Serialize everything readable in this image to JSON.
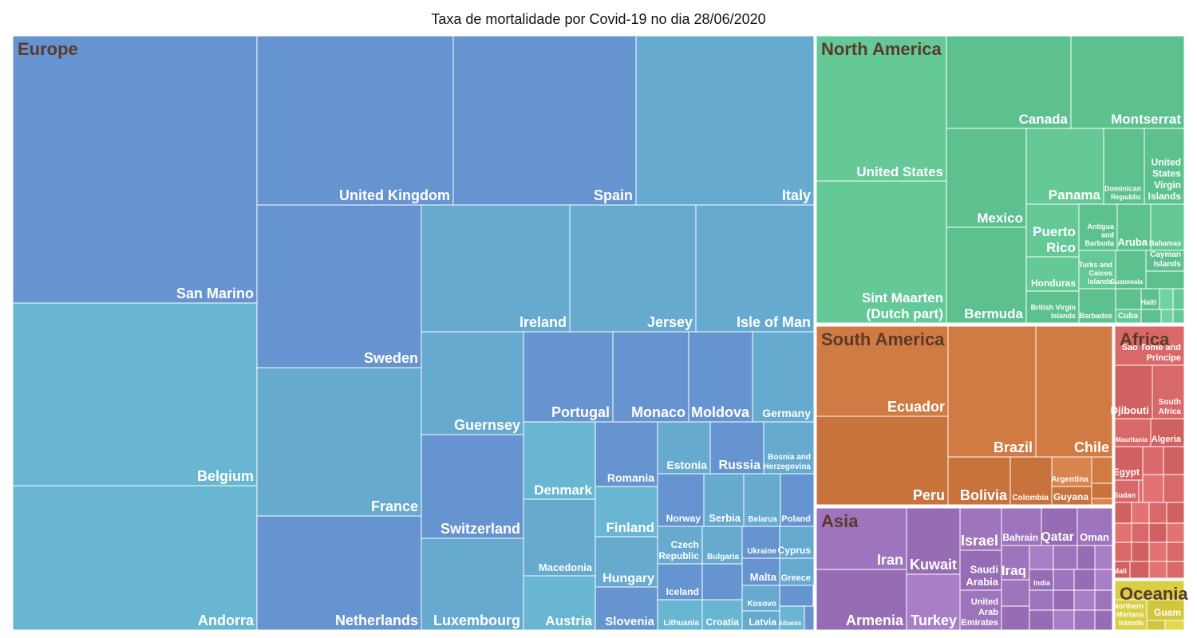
{
  "chart_data": {
    "type": "treemap",
    "title": "Taxa de mortalidade por Covid-19 no dia 28/06/2020",
    "colors": {
      "Europe": "#6694d0",
      "North America": "#64c997",
      "South America": "#d07a44",
      "Asia": "#9e74bc",
      "Africa": "#d96868",
      "Oceania": "#d8cf44",
      "cell_alt_1": "#66aad0",
      "cell_alt_2": "#69b6d2",
      "border": "#ffffff",
      "region_label": "#5a3a2a",
      "cell_label": "#ffffff"
    },
    "regions": [
      {
        "name": "Europe",
        "countries": [
          "San Marino",
          "Belgium",
          "Andorra",
          "United Kingdom",
          "Spain",
          "Italy",
          "Sweden",
          "France",
          "Netherlands",
          "Ireland",
          "Jersey",
          "Isle of Man",
          "Guernsey",
          "Switzerland",
          "Luxembourg",
          "Portugal",
          "Monaco",
          "Moldova",
          "Germany",
          "Denmark",
          "Macedonia",
          "Austria",
          "Romania",
          "Finland",
          "Hungary",
          "Slovenia",
          "Estonia",
          "Russia",
          "Bosnia and Herzegovina",
          "Norway",
          "Serbia",
          "Belarus",
          "Poland",
          "Czech Republic",
          "Bulgaria",
          "Ukraine",
          "Cyprus",
          "Iceland",
          "Malta",
          "Greece",
          "Kosovo",
          "Lithuania",
          "Croatia",
          "Latvia",
          "Albania"
        ]
      },
      {
        "name": "North America",
        "countries": [
          "United States",
          "Sint Maarten (Dutch part)",
          "Canada",
          "Montserrat",
          "Mexico",
          "Bermuda",
          "Panama",
          "Dominican Republic",
          "United States Virgin Islands",
          "Puerto Rico",
          "Antigua and Barbuda",
          "Aruba",
          "Bahamas",
          "Cayman Islands",
          "Honduras",
          "Turks and Caicos Islands",
          "Guatemala",
          "British Virgin Islands",
          "Barbados",
          "Cuba",
          "Haiti"
        ]
      },
      {
        "name": "South America",
        "countries": [
          "Ecuador",
          "Peru",
          "Brazil",
          "Chile",
          "Bolivia",
          "Colombia",
          "Argentina",
          "Guyana"
        ]
      },
      {
        "name": "Asia",
        "countries": [
          "Iran",
          "Armenia",
          "Kuwait",
          "Turkey",
          "Israel",
          "Saudi Arabia",
          "United Arab Emirates",
          "Bahrain",
          "Qatar",
          "Oman",
          "Iraq",
          "India"
        ]
      },
      {
        "name": "Africa",
        "countries": [
          "Sao Tome and Principe",
          "Djibouti",
          "South Africa",
          "Mauritania",
          "Algeria",
          "Egypt",
          "Sudan",
          "Mali"
        ]
      },
      {
        "name": "Oceania",
        "countries": [
          "Northern Mariana Islands",
          "Guam"
        ]
      }
    ]
  }
}
